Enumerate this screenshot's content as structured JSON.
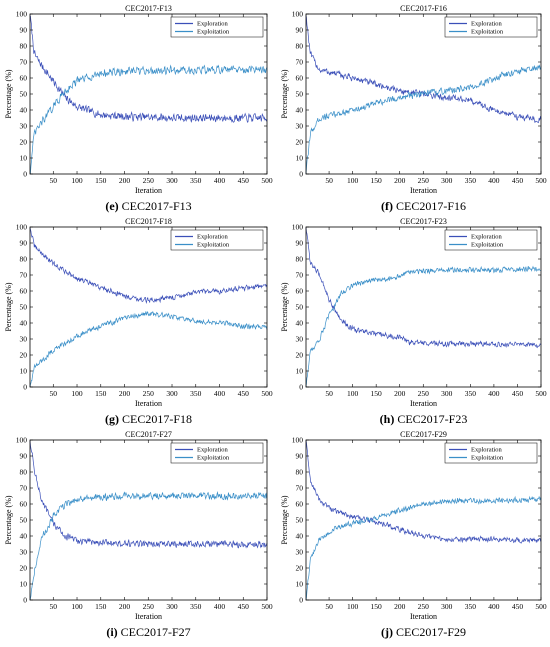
{
  "colors": {
    "exploration": "#3b4fb8",
    "exploitation": "#3a8fc8"
  },
  "chart_data": [
    {
      "type": "line",
      "title": "CEC2017-F13",
      "caption_letter": "(e)",
      "caption_text": "CEC2017-F13",
      "xlabel": "Iteration",
      "ylabel": "Percentage (%)",
      "xlim": [
        1,
        500
      ],
      "ylim": [
        0,
        100
      ],
      "xticks": [
        50,
        100,
        150,
        200,
        250,
        300,
        350,
        400,
        450,
        500
      ],
      "yticks": [
        0,
        10,
        20,
        30,
        40,
        50,
        60,
        70,
        80,
        90,
        100
      ],
      "legend": "top-right",
      "series": [
        {
          "name": "Exploration",
          "x": [
            1,
            10,
            25,
            50,
            75,
            100,
            150,
            200,
            300,
            400,
            500
          ],
          "values": [
            100,
            75,
            68,
            58,
            48,
            42,
            37,
            36,
            35,
            35,
            35
          ],
          "noise": 3
        },
        {
          "name": "Exploitation",
          "x": [
            1,
            10,
            25,
            50,
            75,
            100,
            150,
            200,
            300,
            400,
            500
          ],
          "values": [
            0,
            25,
            32,
            42,
            52,
            58,
            63,
            64,
            65,
            65,
            65
          ],
          "noise": 3
        }
      ]
    },
    {
      "type": "line",
      "title": "CEC2017-F16",
      "caption_letter": "(f)",
      "caption_text": "CEC2017-F16",
      "xlabel": "Iteration",
      "ylabel": "Percentage (%)",
      "xlim": [
        1,
        500
      ],
      "ylim": [
        0,
        100
      ],
      "xticks": [
        50,
        100,
        150,
        200,
        250,
        300,
        350,
        400,
        450,
        500
      ],
      "yticks": [
        0,
        10,
        20,
        30,
        40,
        50,
        60,
        70,
        80,
        90,
        100
      ],
      "legend": "top-right",
      "series": [
        {
          "name": "Exploration",
          "x": [
            1,
            10,
            30,
            60,
            100,
            150,
            200,
            250,
            300,
            350,
            400,
            450,
            500
          ],
          "values": [
            100,
            75,
            65,
            63,
            60,
            56,
            52,
            50,
            48,
            46,
            40,
            36,
            34
          ],
          "noise": 2.5
        },
        {
          "name": "Exploitation",
          "x": [
            1,
            10,
            30,
            60,
            100,
            150,
            200,
            250,
            300,
            350,
            400,
            450,
            500
          ],
          "values": [
            0,
            25,
            35,
            37,
            40,
            44,
            48,
            50,
            52,
            54,
            60,
            64,
            66
          ],
          "noise": 2.5
        }
      ]
    },
    {
      "type": "line",
      "title": "CEC2017-F18",
      "caption_letter": "(g)",
      "caption_text": "CEC2017-F18",
      "xlabel": "Iteration",
      "ylabel": "Percentage (%)",
      "xlim": [
        1,
        500
      ],
      "ylim": [
        0,
        100
      ],
      "xticks": [
        50,
        100,
        150,
        200,
        250,
        300,
        350,
        400,
        450,
        500
      ],
      "yticks": [
        0,
        10,
        20,
        30,
        40,
        50,
        60,
        70,
        80,
        90,
        100
      ],
      "legend": "top-right",
      "series": [
        {
          "name": "Exploration",
          "x": [
            1,
            10,
            50,
            100,
            150,
            200,
            250,
            300,
            350,
            400,
            450,
            500
          ],
          "values": [
            100,
            88,
            77,
            68,
            62,
            57,
            54,
            56,
            59,
            60,
            62,
            63
          ],
          "noise": 2
        },
        {
          "name": "Exploitation",
          "x": [
            1,
            10,
            50,
            100,
            150,
            200,
            250,
            300,
            350,
            400,
            450,
            500
          ],
          "values": [
            0,
            12,
            23,
            32,
            38,
            43,
            46,
            44,
            41,
            40,
            38,
            37
          ],
          "noise": 2
        }
      ]
    },
    {
      "type": "line",
      "title": "CEC2017-F23",
      "caption_letter": "(h)",
      "caption_text": "CEC2017-F23",
      "xlabel": "Iteration",
      "ylabel": "Percentage (%)",
      "xlim": [
        1,
        500
      ],
      "ylim": [
        0,
        100
      ],
      "xticks": [
        50,
        100,
        150,
        200,
        250,
        300,
        350,
        400,
        450,
        500
      ],
      "yticks": [
        0,
        10,
        20,
        30,
        40,
        50,
        60,
        70,
        80,
        90,
        100
      ],
      "legend": "top-right",
      "series": [
        {
          "name": "Exploration",
          "x": [
            1,
            10,
            30,
            50,
            75,
            100,
            150,
            200,
            220,
            300,
            400,
            500
          ],
          "values": [
            100,
            78,
            70,
            55,
            42,
            36,
            33,
            31,
            28,
            27,
            27,
            26
          ],
          "noise": 2
        },
        {
          "name": "Exploitation",
          "x": [
            1,
            10,
            30,
            50,
            75,
            100,
            150,
            200,
            220,
            300,
            400,
            500
          ],
          "values": [
            0,
            22,
            30,
            45,
            58,
            64,
            67,
            69,
            72,
            73,
            73,
            74
          ],
          "noise": 2
        }
      ]
    },
    {
      "type": "line",
      "title": "CEC2017-F27",
      "caption_letter": "(i)",
      "caption_text": "CEC2017-F27",
      "xlabel": "Iteration",
      "ylabel": "Percentage (%)",
      "xlim": [
        1,
        500
      ],
      "ylim": [
        0,
        100
      ],
      "xticks": [
        50,
        100,
        150,
        200,
        250,
        300,
        350,
        400,
        450,
        500
      ],
      "yticks": [
        0,
        10,
        20,
        30,
        40,
        50,
        60,
        70,
        80,
        90,
        100
      ],
      "legend": "top-right",
      "series": [
        {
          "name": "Exploration",
          "x": [
            1,
            10,
            25,
            50,
            75,
            100,
            150,
            200,
            300,
            400,
            500
          ],
          "values": [
            100,
            82,
            62,
            48,
            40,
            37,
            36,
            35,
            35,
            35,
            35
          ],
          "noise": 2.5
        },
        {
          "name": "Exploitation",
          "x": [
            1,
            10,
            25,
            50,
            75,
            100,
            150,
            200,
            300,
            400,
            500
          ],
          "values": [
            0,
            18,
            38,
            52,
            60,
            63,
            64,
            65,
            65,
            65,
            65
          ],
          "noise": 2.5
        }
      ]
    },
    {
      "type": "line",
      "title": "CEC2017-F29",
      "caption_letter": "(j)",
      "caption_text": "CEC2017-F29",
      "xlabel": "Iteration",
      "ylabel": "Percentage (%)",
      "xlim": [
        1,
        500
      ],
      "ylim": [
        0,
        100
      ],
      "xticks": [
        50,
        100,
        150,
        200,
        250,
        300,
        350,
        400,
        450,
        500
      ],
      "yticks": [
        0,
        10,
        20,
        30,
        40,
        50,
        60,
        70,
        80,
        90,
        100
      ],
      "legend": "top-right",
      "series": [
        {
          "name": "Exploration",
          "x": [
            1,
            10,
            30,
            60,
            100,
            150,
            200,
            250,
            300,
            400,
            500
          ],
          "values": [
            100,
            75,
            62,
            56,
            52,
            49,
            44,
            40,
            38,
            38,
            37
          ],
          "noise": 2
        },
        {
          "name": "Exploitation",
          "x": [
            1,
            10,
            30,
            60,
            100,
            150,
            200,
            250,
            300,
            400,
            500
          ],
          "values": [
            0,
            25,
            38,
            44,
            48,
            51,
            56,
            60,
            62,
            62,
            63
          ],
          "noise": 2
        }
      ]
    }
  ]
}
